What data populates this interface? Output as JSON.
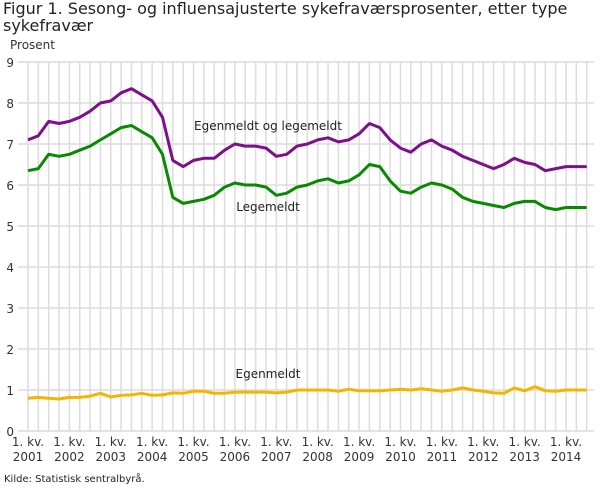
{
  "chart_data": {
    "type": "line",
    "title": "Figur 1. Sesong- og influensajusterte sykefraværsprosenter, etter type sykefravær",
    "ylabel": "Prosent",
    "xlabel": "",
    "ylim": [
      0,
      9
    ],
    "yticks": [
      "0",
      "1",
      "2",
      "3",
      "4",
      "5",
      "6",
      "7",
      "8",
      "9"
    ],
    "grid": true,
    "legend": "inline labels",
    "xtick_labels": [
      [
        "1. kv.",
        "2001"
      ],
      [
        "1. kv.",
        "2002"
      ],
      [
        "1. kv.",
        "2003"
      ],
      [
        "1. kv.",
        "2004"
      ],
      [
        "1. kv.",
        "2005"
      ],
      [
        "1. kv.",
        "2006"
      ],
      [
        "1. kv.",
        "2007"
      ],
      [
        "1. kv.",
        "2008"
      ],
      [
        "1. kv.",
        "2009"
      ],
      [
        "1. kv.",
        "2010"
      ],
      [
        "1. kv.",
        "2011"
      ],
      [
        "1. kv.",
        "2012"
      ],
      [
        "1. kv.",
        "2013"
      ],
      [
        "1. kv.",
        "2014"
      ]
    ],
    "x_range": "2001 Q1 – 2014 Q3 (quarterly)",
    "series": [
      {
        "name": "Egenmeldt og legemeldt",
        "color": "#7d0f8c",
        "values": [
          7.1,
          7.2,
          7.55,
          7.5,
          7.55,
          7.65,
          7.8,
          8.0,
          8.05,
          8.25,
          8.35,
          8.2,
          8.05,
          7.65,
          6.6,
          6.45,
          6.6,
          6.65,
          6.65,
          6.85,
          7.0,
          6.95,
          6.95,
          6.9,
          6.7,
          6.75,
          6.95,
          7.0,
          7.1,
          7.15,
          7.05,
          7.1,
          7.25,
          7.5,
          7.4,
          7.1,
          6.9,
          6.8,
          7.0,
          7.1,
          6.95,
          6.85,
          6.7,
          6.6,
          6.5,
          6.4,
          6.5,
          6.65,
          6.55,
          6.5,
          6.35,
          6.4,
          6.45,
          6.45,
          6.45
        ]
      },
      {
        "name": "Legemeldt",
        "color": "#078a00",
        "values": [
          6.35,
          6.4,
          6.75,
          6.7,
          6.75,
          6.85,
          6.95,
          7.1,
          7.25,
          7.4,
          7.45,
          7.3,
          7.15,
          6.75,
          5.7,
          5.55,
          5.6,
          5.65,
          5.75,
          5.95,
          6.05,
          6.0,
          6.0,
          5.95,
          5.75,
          5.8,
          5.95,
          6.0,
          6.1,
          6.15,
          6.05,
          6.1,
          6.25,
          6.5,
          6.45,
          6.1,
          5.85,
          5.8,
          5.95,
          6.05,
          6.0,
          5.9,
          5.7,
          5.6,
          5.55,
          5.5,
          5.45,
          5.55,
          5.6,
          5.6,
          5.45,
          5.4,
          5.45,
          5.45,
          5.45
        ]
      },
      {
        "name": "Egenmeldt",
        "color": "#f5b400",
        "values": [
          0.8,
          0.82,
          0.8,
          0.78,
          0.82,
          0.82,
          0.85,
          0.92,
          0.83,
          0.87,
          0.88,
          0.92,
          0.87,
          0.88,
          0.93,
          0.92,
          0.97,
          0.97,
          0.92,
          0.92,
          0.95,
          0.95,
          0.95,
          0.95,
          0.93,
          0.95,
          1.0,
          1.0,
          1.0,
          1.0,
          0.97,
          1.02,
          0.98,
          0.98,
          0.98,
          1.0,
          1.02,
          1.0,
          1.03,
          1.0,
          0.97,
          1.0,
          1.05,
          1.0,
          0.97,
          0.93,
          0.92,
          1.05,
          0.98,
          1.08,
          0.98,
          0.97,
          1.0,
          1.0,
          1.0
        ]
      }
    ]
  },
  "source": "Kilde: Statistisk sentralbyrå."
}
